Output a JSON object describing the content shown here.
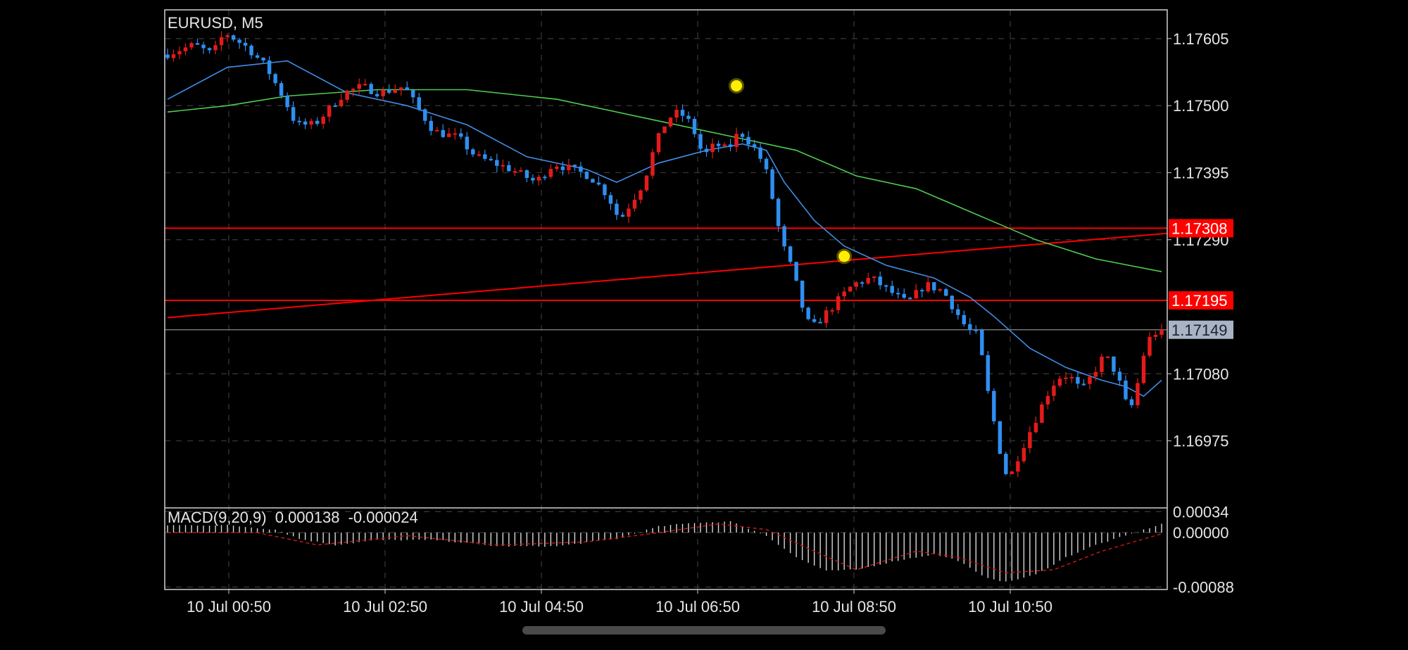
{
  "chart_data": {
    "type": "candlestick",
    "title": "EURUSD, M5",
    "price_axis": {
      "range": [
        1.1687,
        1.1765
      ],
      "ticks": [
        "1.17605",
        "1.17500",
        "1.17395",
        "1.17290",
        "1.17080",
        "1.16975"
      ]
    },
    "time_axis": {
      "range": [
        "10 Jul 00:05",
        "10 Jul 12:05"
      ],
      "ticks": [
        "10 Jul 00:50",
        "10 Jul 02:50",
        "10 Jul 04:50",
        "10 Jul 06:50",
        "10 Jul 08:50",
        "10 Jul 10:50"
      ]
    },
    "price_path": [
      [
        0,
        1.1758
      ],
      [
        5,
        1.17595
      ],
      [
        8,
        1.1758
      ],
      [
        10,
        1.17615
      ],
      [
        14,
        1.1759
      ],
      [
        17,
        1.1756
      ],
      [
        20,
        1.1751
      ],
      [
        22,
        1.1747
      ],
      [
        25,
        1.1747
      ],
      [
        28,
        1.175
      ],
      [
        30,
        1.1752
      ],
      [
        33,
        1.1753
      ],
      [
        36,
        1.1752
      ],
      [
        40,
        1.1753
      ],
      [
        42,
        1.175
      ],
      [
        45,
        1.1746
      ],
      [
        49,
        1.1745
      ],
      [
        52,
        1.1742
      ],
      [
        55,
        1.1741
      ],
      [
        58,
        1.174
      ],
      [
        62,
        1.1738
      ],
      [
        65,
        1.1741
      ],
      [
        68,
        1.174
      ],
      [
        71,
        1.1739
      ],
      [
        74,
        1.1736
      ],
      [
        76,
        1.1732
      ],
      [
        78,
        1.1735
      ],
      [
        80,
        1.1738
      ],
      [
        82,
        1.1744
      ],
      [
        84,
        1.1748
      ],
      [
        86,
        1.1749
      ],
      [
        88,
        1.1747
      ],
      [
        90,
        1.1742
      ],
      [
        92,
        1.1744
      ],
      [
        94,
        1.1743
      ],
      [
        96,
        1.1746
      ],
      [
        98,
        1.1744
      ],
      [
        100,
        1.1741
      ],
      [
        101,
        1.1738
      ],
      [
        102,
        1.1733
      ],
      [
        103,
        1.1729
      ],
      [
        104,
        1.1726
      ],
      [
        105,
        1.1724
      ],
      [
        106,
        1.172
      ],
      [
        107,
        1.1717
      ],
      [
        108,
        1.1715
      ],
      [
        110,
        1.1717
      ],
      [
        112,
        1.1719
      ],
      [
        115,
        1.1722
      ],
      [
        118,
        1.1723
      ],
      [
        121,
        1.1721
      ],
      [
        124,
        1.1719
      ],
      [
        127,
        1.1722
      ],
      [
        130,
        1.1721
      ],
      [
        132,
        1.1718
      ],
      [
        134,
        1.1715
      ],
      [
        136,
        1.1714
      ],
      [
        137,
        1.1707
      ],
      [
        138,
        1.1703
      ],
      [
        139,
        1.1698
      ],
      [
        140,
        1.1694
      ],
      [
        141,
        1.1691
      ],
      [
        142,
        1.1694
      ],
      [
        144,
        1.1698
      ],
      [
        146,
        1.1702
      ],
      [
        148,
        1.1706
      ],
      [
        150,
        1.1708
      ],
      [
        152,
        1.1707
      ],
      [
        153,
        1.1705
      ],
      [
        155,
        1.1708
      ],
      [
        157,
        1.1711
      ],
      [
        159,
        1.1708
      ],
      [
        160,
        1.1705
      ],
      [
        161,
        1.1702
      ],
      [
        162,
        1.1704
      ],
      [
        163,
        1.1709
      ],
      [
        164,
        1.1713
      ],
      [
        165,
        1.1714
      ],
      [
        166,
        1.17149
      ]
    ],
    "ma_fast_path": [
      [
        0,
        1.1751
      ],
      [
        10,
        1.1756
      ],
      [
        20,
        1.1757
      ],
      [
        30,
        1.1752
      ],
      [
        40,
        1.175
      ],
      [
        50,
        1.1747
      ],
      [
        60,
        1.1742
      ],
      [
        70,
        1.174
      ],
      [
        75,
        1.1738
      ],
      [
        82,
        1.1741
      ],
      [
        90,
        1.1743
      ],
      [
        96,
        1.1744
      ],
      [
        100,
        1.1743
      ],
      [
        103,
        1.1738
      ],
      [
        108,
        1.1732
      ],
      [
        113,
        1.1728
      ],
      [
        120,
        1.1725
      ],
      [
        128,
        1.1723
      ],
      [
        134,
        1.172
      ],
      [
        138,
        1.1717
      ],
      [
        144,
        1.1712
      ],
      [
        150,
        1.1709
      ],
      [
        156,
        1.1707
      ],
      [
        160,
        1.1706
      ],
      [
        163,
        1.17045
      ],
      [
        166,
        1.1707
      ]
    ],
    "ma_slow_path": [
      [
        0,
        1.1749
      ],
      [
        10,
        1.175
      ],
      [
        20,
        1.17515
      ],
      [
        35,
        1.17525
      ],
      [
        50,
        1.17525
      ],
      [
        65,
        1.1751
      ],
      [
        80,
        1.1748
      ],
      [
        95,
        1.1745
      ],
      [
        105,
        1.1743
      ],
      [
        115,
        1.1739
      ],
      [
        125,
        1.1737
      ],
      [
        135,
        1.1733
      ],
      [
        145,
        1.1729
      ],
      [
        155,
        1.1726
      ],
      [
        166,
        1.1724
      ]
    ],
    "horizontal_levels": [
      {
        "price": 1.17308,
        "label": "1.17308",
        "color": "#ff0000"
      },
      {
        "price": 1.17195,
        "label": "1.17195",
        "color": "#ff0000"
      }
    ],
    "trendline": {
      "from": [
        0,
        1.17168
      ],
      "to": [
        166,
        1.173
      ],
      "color": "#ff0000"
    },
    "current_price": {
      "price": 1.17149,
      "label": "1.17149",
      "color": "#a8b4c4"
    },
    "markers": [
      {
        "t": 95,
        "price": 1.17531,
        "color": "#ffee00"
      },
      {
        "t": 113,
        "price": 1.17264,
        "color": "#ffee00"
      }
    ],
    "macd": {
      "label": "MACD(9,20,9)",
      "macd_value": "0.000138",
      "signal_value": "-0.000024",
      "range": [
        -0.00092,
        0.0004
      ],
      "ticks": [
        "0.00034",
        "0.00000",
        "-0.00088"
      ],
      "hist_path": [
        [
          0,
          0.00012
        ],
        [
          10,
          0.00012
        ],
        [
          18,
          5e-05
        ],
        [
          22,
          -0.0001
        ],
        [
          28,
          -0.0002
        ],
        [
          35,
          -0.00012
        ],
        [
          45,
          -0.00012
        ],
        [
          55,
          -0.00022
        ],
        [
          65,
          -0.00022
        ],
        [
          75,
          -0.0001
        ],
        [
          82,
          0.0001
        ],
        [
          88,
          0.00016
        ],
        [
          94,
          0.00018
        ],
        [
          100,
          -5e-05
        ],
        [
          105,
          -0.0004
        ],
        [
          110,
          -0.00062
        ],
        [
          115,
          -0.0006
        ],
        [
          122,
          -0.00045
        ],
        [
          128,
          -0.00035
        ],
        [
          132,
          -0.00045
        ],
        [
          136,
          -0.0007
        ],
        [
          140,
          -0.0008
        ],
        [
          145,
          -0.00068
        ],
        [
          150,
          -0.0004
        ],
        [
          155,
          -0.0002
        ],
        [
          160,
          -5e-05
        ],
        [
          166,
          0.00014
        ]
      ],
      "signal_path": [
        [
          0,
          0.0
        ],
        [
          15,
          0.0
        ],
        [
          25,
          -0.0002
        ],
        [
          40,
          -5e-05
        ],
        [
          55,
          -0.0002
        ],
        [
          70,
          -0.00015
        ],
        [
          82,
          0.0
        ],
        [
          92,
          0.00014
        ],
        [
          100,
          5e-05
        ],
        [
          108,
          -0.0003
        ],
        [
          115,
          -0.0006
        ],
        [
          125,
          -0.0003
        ],
        [
          132,
          -0.0004
        ],
        [
          140,
          -0.00065
        ],
        [
          148,
          -0.0006
        ],
        [
          156,
          -0.0003
        ],
        [
          166,
          -2e-05
        ]
      ]
    },
    "colors": {
      "up_candle": "#e31b1b",
      "down_candle": "#2f8ff0",
      "ma_fast": "#3d8ee8",
      "ma_slow": "#4fcc4f",
      "macd_histogram": "#d8d8d8",
      "macd_signal": "#d01818",
      "grid": "#3a3a3a",
      "frame": "#cfcfcf"
    }
  }
}
